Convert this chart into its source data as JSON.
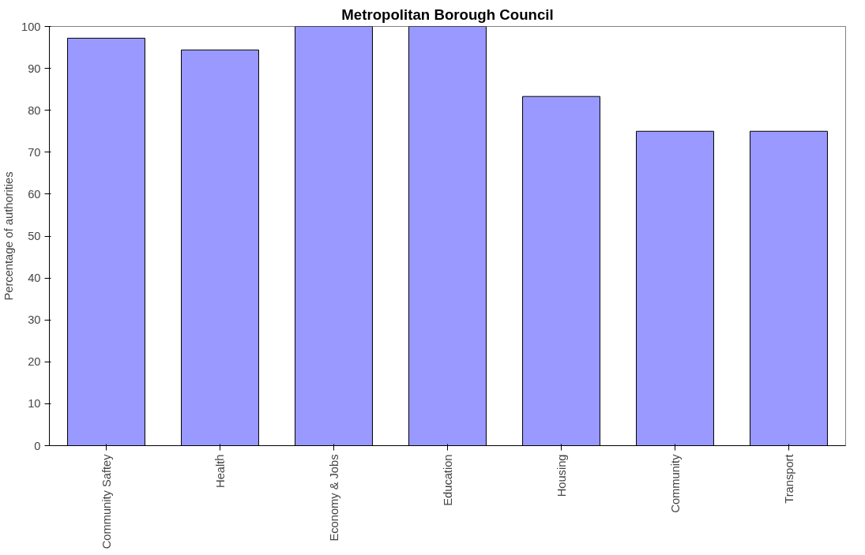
{
  "chart_data": {
    "type": "bar",
    "title": "Metropolitan Borough Council",
    "ylabel": "Percentage of authorities",
    "categories": [
      "Community Saftey",
      "Health",
      "Economy & Jobs",
      "Education",
      "Housing",
      "Community",
      "Transport"
    ],
    "values": [
      97.2,
      94.4,
      100,
      100,
      83.3,
      75,
      75
    ],
    "color": "#9999ff",
    "ylim": [
      0,
      100
    ],
    "yticks": [
      0,
      10,
      20,
      30,
      40,
      50,
      60,
      70,
      80,
      90,
      100
    ],
    "grid": false
  }
}
